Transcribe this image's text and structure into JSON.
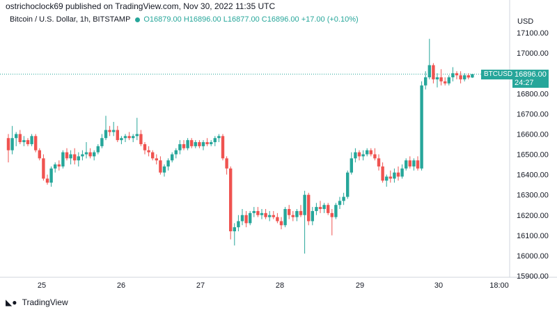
{
  "header": {
    "publisher_line": "ostrichoclock69 published on TradingView.com, Nov 30, 2022 11:35 UTC"
  },
  "symbol": {
    "name": "Bitcoin / U.S. Dollar, 1h, BITSTAMP",
    "open": "O16879.00",
    "high": "H16896.00",
    "low": "L16877.00",
    "close": "C16896.00",
    "change": "+17.00 (+0.10%)"
  },
  "price_label": {
    "ticker": "BTCUSD",
    "price": "16896.00",
    "countdown": "24:27"
  },
  "currency": "USD",
  "footer": {
    "brand": "TradingView",
    "icon": "tradingview-logo-icon"
  },
  "colors": {
    "up": "#26a69a",
    "down": "#ef5350",
    "last_price_line": "#26a69a"
  },
  "chart_data": {
    "type": "candlestick",
    "title": "Bitcoin / U.S. Dollar, 1h, BITSTAMP",
    "ylim": [
      15900,
      17150
    ],
    "y_ticks": [
      "15900.00",
      "16000.00",
      "16100.00",
      "16200.00",
      "16300.00",
      "16400.00",
      "16500.00",
      "16600.00",
      "16700.00",
      "16800.00",
      "16900.00",
      "17000.00",
      "17100.00"
    ],
    "x_ticks": [
      "25",
      "26",
      "27",
      "28",
      "29",
      "30",
      "18:00"
    ],
    "last_price": 16896,
    "grid": false,
    "series": [
      {
        "x": 0,
        "o": 16580,
        "h": 16600,
        "l": 16460,
        "c": 16520
      },
      {
        "x": 1,
        "o": 16520,
        "h": 16640,
        "l": 16500,
        "c": 16580
      },
      {
        "x": 2,
        "o": 16580,
        "h": 16610,
        "l": 16540,
        "c": 16600
      },
      {
        "x": 3,
        "o": 16600,
        "h": 16620,
        "l": 16550,
        "c": 16560
      },
      {
        "x": 4,
        "o": 16560,
        "h": 16590,
        "l": 16540,
        "c": 16570
      },
      {
        "x": 5,
        "o": 16570,
        "h": 16580,
        "l": 16540,
        "c": 16550
      },
      {
        "x": 6,
        "o": 16550,
        "h": 16600,
        "l": 16540,
        "c": 16590
      },
      {
        "x": 7,
        "o": 16590,
        "h": 16600,
        "l": 16510,
        "c": 16520
      },
      {
        "x": 8,
        "o": 16520,
        "h": 16530,
        "l": 16470,
        "c": 16480
      },
      {
        "x": 9,
        "o": 16480,
        "h": 16500,
        "l": 16370,
        "c": 16380
      },
      {
        "x": 10,
        "o": 16380,
        "h": 16400,
        "l": 16350,
        "c": 16360
      },
      {
        "x": 11,
        "o": 16360,
        "h": 16440,
        "l": 16340,
        "c": 16430
      },
      {
        "x": 12,
        "o": 16430,
        "h": 16460,
        "l": 16410,
        "c": 16450
      },
      {
        "x": 13,
        "o": 16450,
        "h": 16470,
        "l": 16420,
        "c": 16440
      },
      {
        "x": 14,
        "o": 16440,
        "h": 16520,
        "l": 16430,
        "c": 16510
      },
      {
        "x": 15,
        "o": 16510,
        "h": 16530,
        "l": 16470,
        "c": 16480
      },
      {
        "x": 16,
        "o": 16480,
        "h": 16520,
        "l": 16450,
        "c": 16500
      },
      {
        "x": 17,
        "o": 16500,
        "h": 16530,
        "l": 16450,
        "c": 16470
      },
      {
        "x": 18,
        "o": 16470,
        "h": 16510,
        "l": 16440,
        "c": 16490
      },
      {
        "x": 19,
        "o": 16490,
        "h": 16520,
        "l": 16470,
        "c": 16500
      },
      {
        "x": 20,
        "o": 16500,
        "h": 16560,
        "l": 16480,
        "c": 16510
      },
      {
        "x": 21,
        "o": 16510,
        "h": 16530,
        "l": 16480,
        "c": 16490
      },
      {
        "x": 22,
        "o": 16490,
        "h": 16520,
        "l": 16470,
        "c": 16510
      },
      {
        "x": 23,
        "o": 16510,
        "h": 16550,
        "l": 16500,
        "c": 16540
      },
      {
        "x": 24,
        "o": 16540,
        "h": 16600,
        "l": 16530,
        "c": 16580
      },
      {
        "x": 25,
        "o": 16580,
        "h": 16690,
        "l": 16570,
        "c": 16620
      },
      {
        "x": 26,
        "o": 16620,
        "h": 16640,
        "l": 16590,
        "c": 16610
      },
      {
        "x": 27,
        "o": 16610,
        "h": 16660,
        "l": 16590,
        "c": 16620
      },
      {
        "x": 28,
        "o": 16620,
        "h": 16640,
        "l": 16560,
        "c": 16570
      },
      {
        "x": 29,
        "o": 16570,
        "h": 16590,
        "l": 16550,
        "c": 16580
      },
      {
        "x": 30,
        "o": 16580,
        "h": 16600,
        "l": 16560,
        "c": 16590
      },
      {
        "x": 31,
        "o": 16590,
        "h": 16610,
        "l": 16570,
        "c": 16580
      },
      {
        "x": 32,
        "o": 16580,
        "h": 16600,
        "l": 16560,
        "c": 16590
      },
      {
        "x": 33,
        "o": 16590,
        "h": 16680,
        "l": 16570,
        "c": 16600
      },
      {
        "x": 34,
        "o": 16600,
        "h": 16620,
        "l": 16540,
        "c": 16550
      },
      {
        "x": 35,
        "o": 16550,
        "h": 16560,
        "l": 16500,
        "c": 16520
      },
      {
        "x": 36,
        "o": 16520,
        "h": 16540,
        "l": 16490,
        "c": 16510
      },
      {
        "x": 37,
        "o": 16510,
        "h": 16520,
        "l": 16470,
        "c": 16480
      },
      {
        "x": 38,
        "o": 16480,
        "h": 16500,
        "l": 16450,
        "c": 16470
      },
      {
        "x": 39,
        "o": 16470,
        "h": 16490,
        "l": 16400,
        "c": 16410
      },
      {
        "x": 40,
        "o": 16410,
        "h": 16450,
        "l": 16390,
        "c": 16440
      },
      {
        "x": 41,
        "o": 16440,
        "h": 16480,
        "l": 16420,
        "c": 16470
      },
      {
        "x": 42,
        "o": 16470,
        "h": 16510,
        "l": 16460,
        "c": 16500
      },
      {
        "x": 43,
        "o": 16500,
        "h": 16530,
        "l": 16480,
        "c": 16520
      },
      {
        "x": 44,
        "o": 16520,
        "h": 16570,
        "l": 16500,
        "c": 16550
      },
      {
        "x": 45,
        "o": 16550,
        "h": 16570,
        "l": 16520,
        "c": 16530
      },
      {
        "x": 46,
        "o": 16530,
        "h": 16580,
        "l": 16520,
        "c": 16570
      },
      {
        "x": 47,
        "o": 16570,
        "h": 16580,
        "l": 16530,
        "c": 16540
      },
      {
        "x": 48,
        "o": 16540,
        "h": 16570,
        "l": 16530,
        "c": 16560
      },
      {
        "x": 49,
        "o": 16560,
        "h": 16570,
        "l": 16530,
        "c": 16540
      },
      {
        "x": 50,
        "o": 16540,
        "h": 16570,
        "l": 16520,
        "c": 16560
      },
      {
        "x": 51,
        "o": 16560,
        "h": 16580,
        "l": 16540,
        "c": 16550
      },
      {
        "x": 52,
        "o": 16550,
        "h": 16570,
        "l": 16540,
        "c": 16560
      },
      {
        "x": 53,
        "o": 16560,
        "h": 16590,
        "l": 16540,
        "c": 16580
      },
      {
        "x": 54,
        "o": 16580,
        "h": 16600,
        "l": 16560,
        "c": 16590
      },
      {
        "x": 55,
        "o": 16590,
        "h": 16600,
        "l": 16470,
        "c": 16480
      },
      {
        "x": 56,
        "o": 16480,
        "h": 16490,
        "l": 16400,
        "c": 16430
      },
      {
        "x": 57,
        "o": 16430,
        "h": 16440,
        "l": 16080,
        "c": 16120
      },
      {
        "x": 58,
        "o": 16120,
        "h": 16160,
        "l": 16050,
        "c": 16140
      },
      {
        "x": 59,
        "o": 16140,
        "h": 16200,
        "l": 16120,
        "c": 16170
      },
      {
        "x": 60,
        "o": 16170,
        "h": 16230,
        "l": 16150,
        "c": 16200
      },
      {
        "x": 61,
        "o": 16200,
        "h": 16220,
        "l": 16140,
        "c": 16160
      },
      {
        "x": 62,
        "o": 16160,
        "h": 16220,
        "l": 16150,
        "c": 16210
      },
      {
        "x": 63,
        "o": 16210,
        "h": 16240,
        "l": 16190,
        "c": 16220
      },
      {
        "x": 64,
        "o": 16220,
        "h": 16240,
        "l": 16190,
        "c": 16200
      },
      {
        "x": 65,
        "o": 16200,
        "h": 16230,
        "l": 16180,
        "c": 16210
      },
      {
        "x": 66,
        "o": 16210,
        "h": 16230,
        "l": 16180,
        "c": 16190
      },
      {
        "x": 67,
        "o": 16190,
        "h": 16220,
        "l": 16170,
        "c": 16200
      },
      {
        "x": 68,
        "o": 16200,
        "h": 16220,
        "l": 16180,
        "c": 16190
      },
      {
        "x": 69,
        "o": 16190,
        "h": 16210,
        "l": 16160,
        "c": 16170
      },
      {
        "x": 70,
        "o": 16170,
        "h": 16190,
        "l": 16130,
        "c": 16150
      },
      {
        "x": 71,
        "o": 16150,
        "h": 16240,
        "l": 16140,
        "c": 16230
      },
      {
        "x": 72,
        "o": 16230,
        "h": 16250,
        "l": 16180,
        "c": 16200
      },
      {
        "x": 73,
        "o": 16200,
        "h": 16220,
        "l": 16170,
        "c": 16190
      },
      {
        "x": 74,
        "o": 16190,
        "h": 16230,
        "l": 16170,
        "c": 16220
      },
      {
        "x": 75,
        "o": 16220,
        "h": 16250,
        "l": 16190,
        "c": 16200
      },
      {
        "x": 76,
        "o": 16200,
        "h": 16320,
        "l": 16010,
        "c": 16300
      },
      {
        "x": 77,
        "o": 16300,
        "h": 16310,
        "l": 16150,
        "c": 16170
      },
      {
        "x": 78,
        "o": 16170,
        "h": 16240,
        "l": 16150,
        "c": 16220
      },
      {
        "x": 79,
        "o": 16220,
        "h": 16260,
        "l": 16200,
        "c": 16240
      },
      {
        "x": 80,
        "o": 16240,
        "h": 16270,
        "l": 16210,
        "c": 16230
      },
      {
        "x": 81,
        "o": 16230,
        "h": 16260,
        "l": 16210,
        "c": 16250
      },
      {
        "x": 82,
        "o": 16250,
        "h": 16260,
        "l": 16200,
        "c": 16210
      },
      {
        "x": 83,
        "o": 16210,
        "h": 16230,
        "l": 16100,
        "c": 16190
      },
      {
        "x": 84,
        "o": 16190,
        "h": 16260,
        "l": 16180,
        "c": 16250
      },
      {
        "x": 85,
        "o": 16250,
        "h": 16290,
        "l": 16230,
        "c": 16270
      },
      {
        "x": 86,
        "o": 16270,
        "h": 16310,
        "l": 16250,
        "c": 16290
      },
      {
        "x": 87,
        "o": 16290,
        "h": 16420,
        "l": 16280,
        "c": 16410
      },
      {
        "x": 88,
        "o": 16410,
        "h": 16510,
        "l": 16400,
        "c": 16480
      },
      {
        "x": 89,
        "o": 16480,
        "h": 16530,
        "l": 16460,
        "c": 16510
      },
      {
        "x": 90,
        "o": 16510,
        "h": 16520,
        "l": 16470,
        "c": 16490
      },
      {
        "x": 91,
        "o": 16490,
        "h": 16520,
        "l": 16470,
        "c": 16500
      },
      {
        "x": 92,
        "o": 16500,
        "h": 16530,
        "l": 16490,
        "c": 16520
      },
      {
        "x": 93,
        "o": 16520,
        "h": 16530,
        "l": 16490,
        "c": 16500
      },
      {
        "x": 94,
        "o": 16500,
        "h": 16530,
        "l": 16470,
        "c": 16480
      },
      {
        "x": 95,
        "o": 16480,
        "h": 16500,
        "l": 16420,
        "c": 16440
      },
      {
        "x": 96,
        "o": 16440,
        "h": 16460,
        "l": 16360,
        "c": 16370
      },
      {
        "x": 97,
        "o": 16370,
        "h": 16400,
        "l": 16340,
        "c": 16390
      },
      {
        "x": 98,
        "o": 16390,
        "h": 16420,
        "l": 16360,
        "c": 16380
      },
      {
        "x": 99,
        "o": 16380,
        "h": 16430,
        "l": 16360,
        "c": 16410
      },
      {
        "x": 100,
        "o": 16410,
        "h": 16440,
        "l": 16370,
        "c": 16390
      },
      {
        "x": 101,
        "o": 16390,
        "h": 16450,
        "l": 16380,
        "c": 16430
      },
      {
        "x": 102,
        "o": 16430,
        "h": 16480,
        "l": 16420,
        "c": 16470
      },
      {
        "x": 103,
        "o": 16470,
        "h": 16490,
        "l": 16430,
        "c": 16440
      },
      {
        "x": 104,
        "o": 16440,
        "h": 16480,
        "l": 16420,
        "c": 16470
      },
      {
        "x": 105,
        "o": 16470,
        "h": 16490,
        "l": 16420,
        "c": 16430
      },
      {
        "x": 106,
        "o": 16430,
        "h": 16860,
        "l": 16420,
        "c": 16840
      },
      {
        "x": 107,
        "o": 16840,
        "h": 16910,
        "l": 16820,
        "c": 16880
      },
      {
        "x": 108,
        "o": 16880,
        "h": 17070,
        "l": 16870,
        "c": 16940
      },
      {
        "x": 109,
        "o": 16940,
        "h": 16950,
        "l": 16850,
        "c": 16870
      },
      {
        "x": 110,
        "o": 16870,
        "h": 16900,
        "l": 16830,
        "c": 16880
      },
      {
        "x": 111,
        "o": 16880,
        "h": 16920,
        "l": 16840,
        "c": 16860
      },
      {
        "x": 112,
        "o": 16860,
        "h": 16880,
        "l": 16840,
        "c": 16850
      },
      {
        "x": 113,
        "o": 16850,
        "h": 16890,
        "l": 16840,
        "c": 16880
      },
      {
        "x": 114,
        "o": 16880,
        "h": 16930,
        "l": 16860,
        "c": 16900
      },
      {
        "x": 115,
        "o": 16900,
        "h": 16910,
        "l": 16870,
        "c": 16890
      },
      {
        "x": 116,
        "o": 16890,
        "h": 16910,
        "l": 16850,
        "c": 16870
      },
      {
        "x": 117,
        "o": 16870,
        "h": 16900,
        "l": 16860,
        "c": 16890
      },
      {
        "x": 118,
        "o": 16890,
        "h": 16900,
        "l": 16870,
        "c": 16879
      },
      {
        "x": 119,
        "o": 16879,
        "h": 16896,
        "l": 16877,
        "c": 16896
      }
    ]
  }
}
